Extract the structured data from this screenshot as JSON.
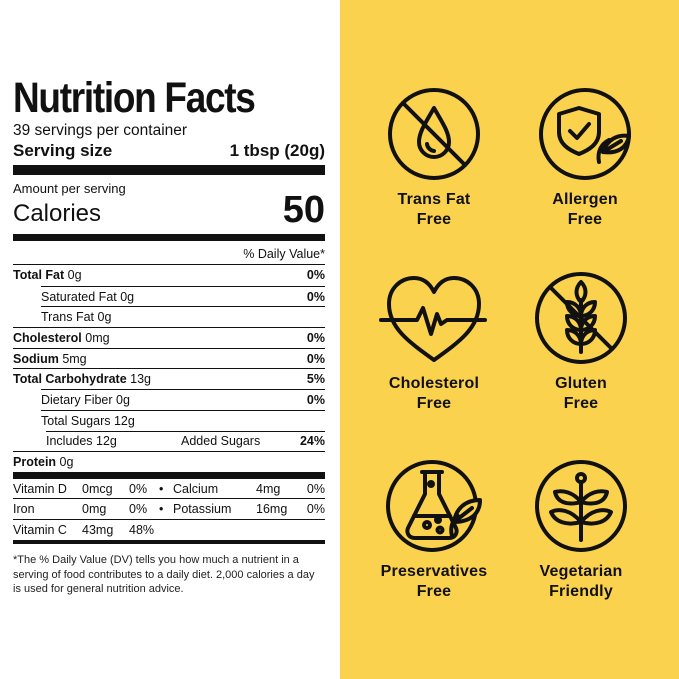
{
  "label": {
    "title": "Nutrition Facts",
    "servings": "39 servings per container",
    "serving_size_label": "Serving size",
    "serving_size_value": "1 tbsp (20g)",
    "amount_per_serving": "Amount per serving",
    "calories_label": "Calories",
    "calories_value": "50",
    "daily_value_header": "% Daily Value*",
    "rows": [
      {
        "bold": "Total Fat",
        "text": " 0g",
        "pct": "0%"
      },
      {
        "bold": "",
        "text": "Saturated Fat 0g",
        "pct": "0%"
      },
      {
        "bold": "",
        "text": "Trans Fat 0g",
        "pct": ""
      },
      {
        "bold": "Cholesterol",
        "text": " 0mg",
        "pct": "0%"
      },
      {
        "bold": "Sodium",
        "text": " 5mg",
        "pct": "0%"
      },
      {
        "bold": "Total Carbohydrate",
        "text": " 13g",
        "pct": "5%"
      },
      {
        "bold": "",
        "text": "Dietary Fiber 0g",
        "pct": "0%"
      },
      {
        "bold": "",
        "text": "Total Sugars 12g",
        "pct": ""
      },
      {
        "bold": "",
        "text": "Includes 12g",
        "mid": "Added Sugars",
        "pct": "24%"
      },
      {
        "bold": "Protein",
        "text": " 0g",
        "pct": ""
      }
    ],
    "vitamins": [
      {
        "l_name": "Vitamin D",
        "l_amt": "0mcg",
        "l_pct": "0%",
        "r_name": "Calcium",
        "r_amt": "4mg",
        "r_pct": "0%"
      },
      {
        "l_name": "Iron",
        "l_amt": "0mg",
        "l_pct": "0%",
        "r_name": "Potassium",
        "r_amt": "16mg",
        "r_pct": "0%"
      },
      {
        "l_name": "Vitamin C",
        "l_amt": "43mg",
        "l_pct": "48%",
        "r_name": "",
        "r_amt": "",
        "r_pct": ""
      }
    ],
    "bullet": "•",
    "footnote": "*The % Daily Value (DV) tells you how much a nutrient in a serving of food contributes to a daily diet. 2,000 calories a day is used for general nutrition advice."
  },
  "badges": [
    {
      "icon": "trans-fat-icon",
      "line1": "Trans Fat",
      "line2": "Free"
    },
    {
      "icon": "allergen-icon",
      "line1": "Allergen",
      "line2": "Free"
    },
    {
      "icon": "cholesterol-icon",
      "line1": "Cholesterol",
      "line2": "Free"
    },
    {
      "icon": "gluten-icon",
      "line1": "Gluten",
      "line2": "Free"
    },
    {
      "icon": "preservatives-icon",
      "line1": "Preservatives",
      "line2": "Free"
    },
    {
      "icon": "vegetarian-icon",
      "line1": "Vegetarian",
      "line2": "Friendly"
    }
  ],
  "colors": {
    "panel": "#fbd24e",
    "ink": "#111111"
  }
}
